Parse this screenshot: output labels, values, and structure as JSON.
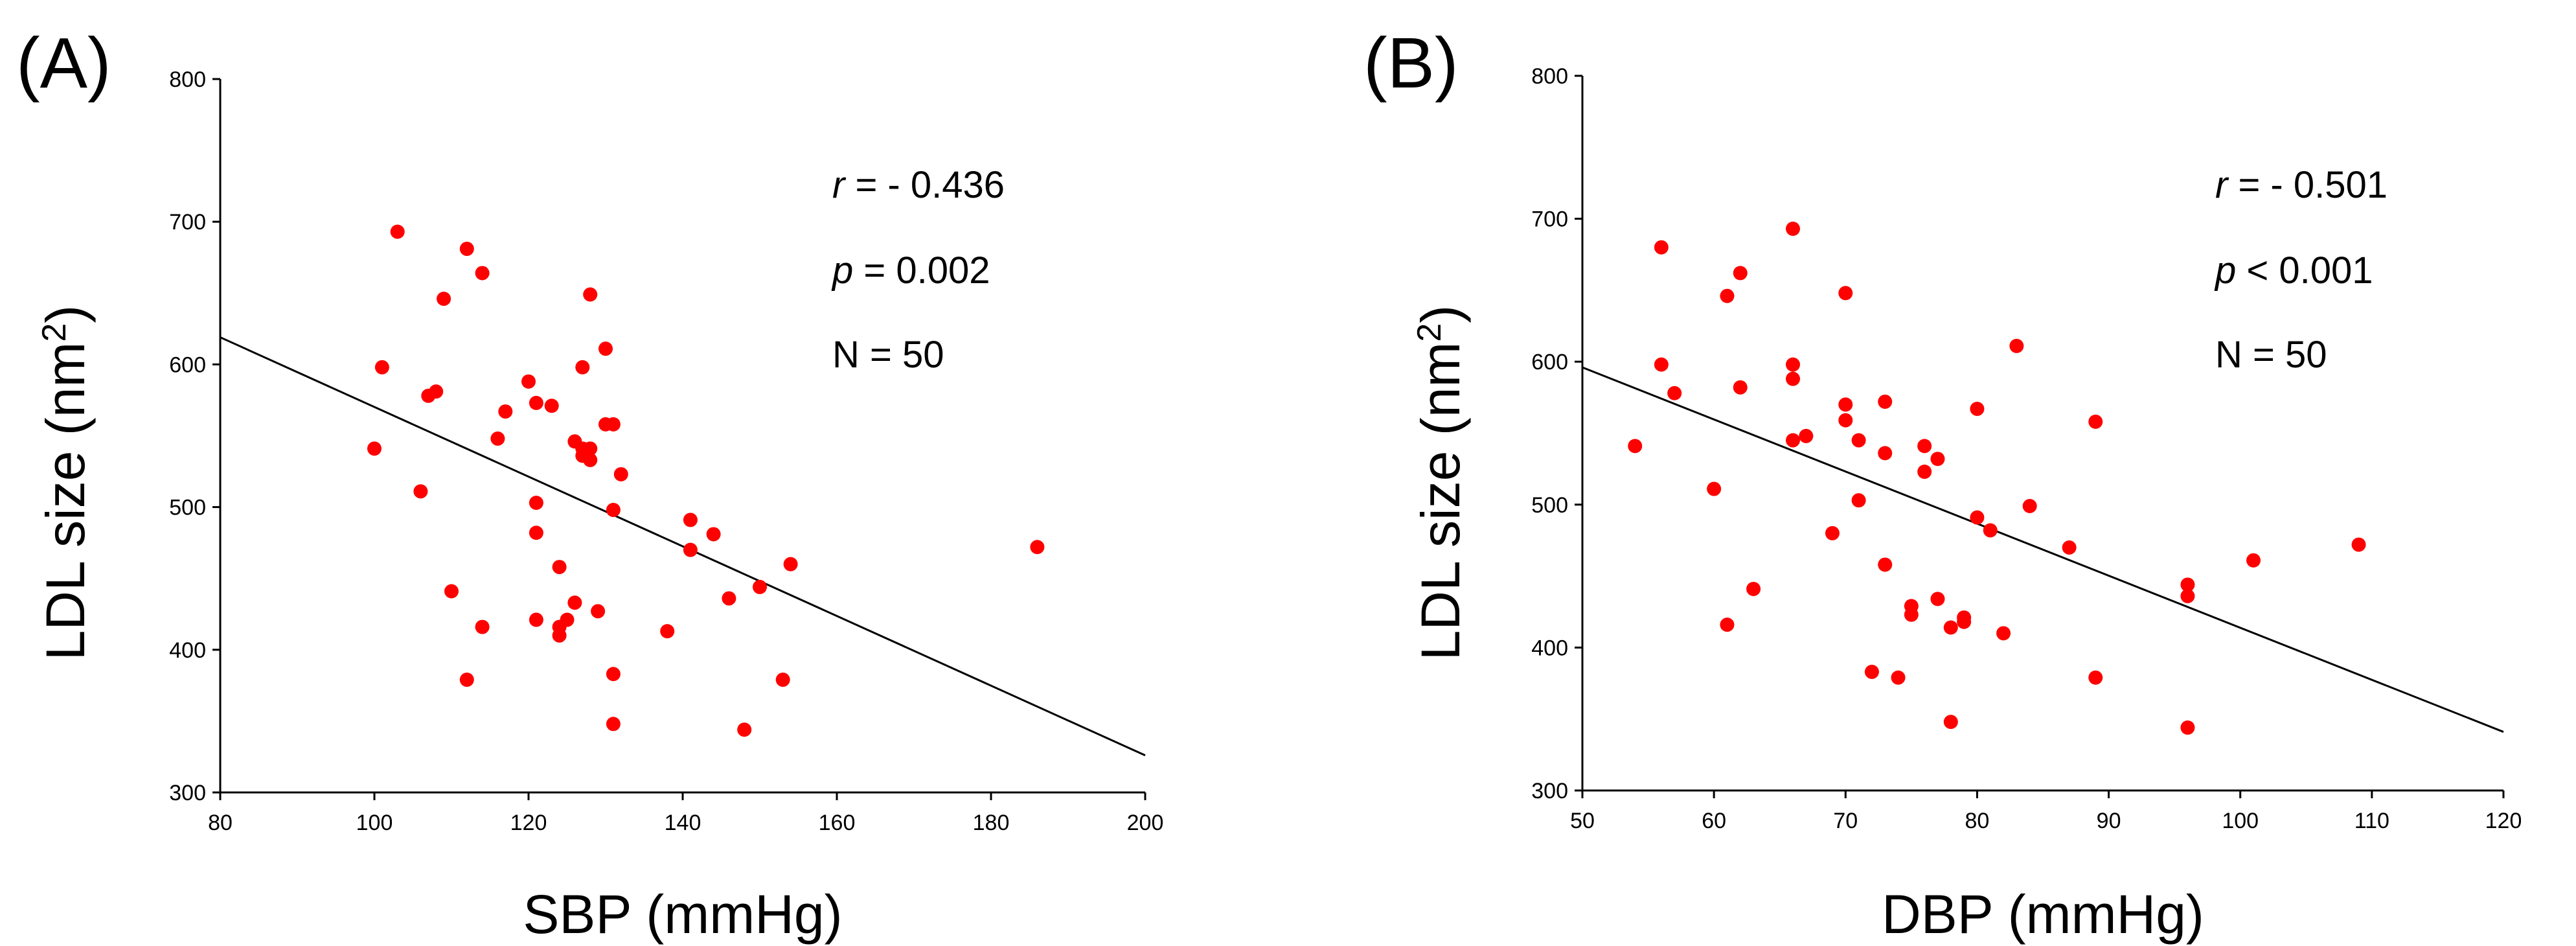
{
  "chart_data": [
    {
      "type": "scatter",
      "panel_label": "(A)",
      "title": "",
      "xlabel": "SBP (mmHg)",
      "ylabel": "LDL size (nm2)",
      "ylabel_base": "LDL size (nm",
      "ylabel_sup": "2",
      "ylabel_end": ")",
      "xlim": [
        80,
        200
      ],
      "ylim": [
        300,
        800
      ],
      "xticks": [
        80,
        100,
        120,
        140,
        160,
        180,
        200
      ],
      "yticks": [
        300,
        400,
        500,
        600,
        700,
        800
      ],
      "grid": false,
      "annotations": {
        "r_symbol": "r",
        "r_text": " = - 0.436",
        "p_symbol": "p",
        "p_text": " = 0.002",
        "n_text": "N = 50"
      },
      "trendline": {
        "x": [
          80,
          200
        ],
        "y": [
          619,
          326
        ]
      },
      "points": [
        [
          100,
          541
        ],
        [
          101,
          598
        ],
        [
          103,
          693
        ],
        [
          106,
          511
        ],
        [
          107,
          578
        ],
        [
          108,
          581
        ],
        [
          109,
          646
        ],
        [
          110,
          441
        ],
        [
          112,
          681
        ],
        [
          112,
          379
        ],
        [
          114,
          664
        ],
        [
          114,
          416
        ],
        [
          116,
          548
        ],
        [
          117,
          567
        ],
        [
          120,
          588
        ],
        [
          121,
          573
        ],
        [
          121,
          503
        ],
        [
          121,
          482
        ],
        [
          121,
          421
        ],
        [
          123,
          571
        ],
        [
          124,
          458
        ],
        [
          124,
          416
        ],
        [
          124,
          410
        ],
        [
          125,
          421
        ],
        [
          126,
          546
        ],
        [
          126,
          433
        ],
        [
          127,
          598
        ],
        [
          127,
          536
        ],
        [
          127,
          541
        ],
        [
          128,
          649
        ],
        [
          128,
          541
        ],
        [
          128,
          533
        ],
        [
          129,
          427
        ],
        [
          130,
          611
        ],
        [
          130,
          558
        ],
        [
          131,
          558
        ],
        [
          131,
          498
        ],
        [
          131,
          383
        ],
        [
          131,
          348
        ],
        [
          132,
          523
        ],
        [
          138,
          413
        ],
        [
          141,
          491
        ],
        [
          141,
          470
        ],
        [
          144,
          481
        ],
        [
          146,
          436
        ],
        [
          148,
          344
        ],
        [
          150,
          444
        ],
        [
          153,
          379
        ],
        [
          154,
          460
        ],
        [
          186,
          472
        ]
      ]
    },
    {
      "type": "scatter",
      "panel_label": "(B)",
      "title": "",
      "xlabel": "DBP (mmHg)",
      "ylabel": "LDL size (nm2)",
      "ylabel_base": "LDL size (nm",
      "ylabel_sup": "2",
      "ylabel_end": ")",
      "xlim": [
        50,
        120
      ],
      "ylim": [
        300,
        800
      ],
      "xticks": [
        50,
        60,
        70,
        80,
        90,
        100,
        110,
        120
      ],
      "yticks": [
        300,
        400,
        500,
        600,
        700,
        800
      ],
      "grid": false,
      "annotations": {
        "r_symbol": "r",
        "r_text": " =  - 0.501",
        "p_symbol": "p",
        "p_text": " < 0.001",
        "n_text": "N = 50"
      },
      "trendline": {
        "x": [
          50,
          120
        ],
        "y": [
          596,
          341
        ]
      },
      "points": [
        [
          54,
          541
        ],
        [
          56,
          680
        ],
        [
          56,
          598
        ],
        [
          57,
          578
        ],
        [
          60,
          511
        ],
        [
          61,
          646
        ],
        [
          61,
          416
        ],
        [
          62,
          662
        ],
        [
          62,
          582
        ],
        [
          63,
          441
        ],
        [
          66,
          693
        ],
        [
          66,
          598
        ],
        [
          66,
          588
        ],
        [
          66,
          545
        ],
        [
          67,
          548
        ],
        [
          69,
          480
        ],
        [
          70,
          648
        ],
        [
          70,
          570
        ],
        [
          70,
          559
        ],
        [
          71,
          545
        ],
        [
          71,
          503
        ],
        [
          72,
          383
        ],
        [
          73,
          572
        ],
        [
          73,
          536
        ],
        [
          73,
          458
        ],
        [
          74,
          379
        ],
        [
          75,
          429
        ],
        [
          75,
          423
        ],
        [
          76,
          541
        ],
        [
          76,
          523
        ],
        [
          77,
          532
        ],
        [
          77,
          434
        ],
        [
          78,
          348
        ],
        [
          78,
          414
        ],
        [
          79,
          421
        ],
        [
          79,
          418
        ],
        [
          80,
          567
        ],
        [
          80,
          491
        ],
        [
          81,
          482
        ],
        [
          82,
          410
        ],
        [
          83,
          611
        ],
        [
          84,
          499
        ],
        [
          87,
          470
        ],
        [
          89,
          558
        ],
        [
          89,
          379
        ],
        [
          96,
          444
        ],
        [
          96,
          436
        ],
        [
          96,
          344
        ],
        [
          101,
          461
        ],
        [
          109,
          472
        ]
      ]
    }
  ]
}
